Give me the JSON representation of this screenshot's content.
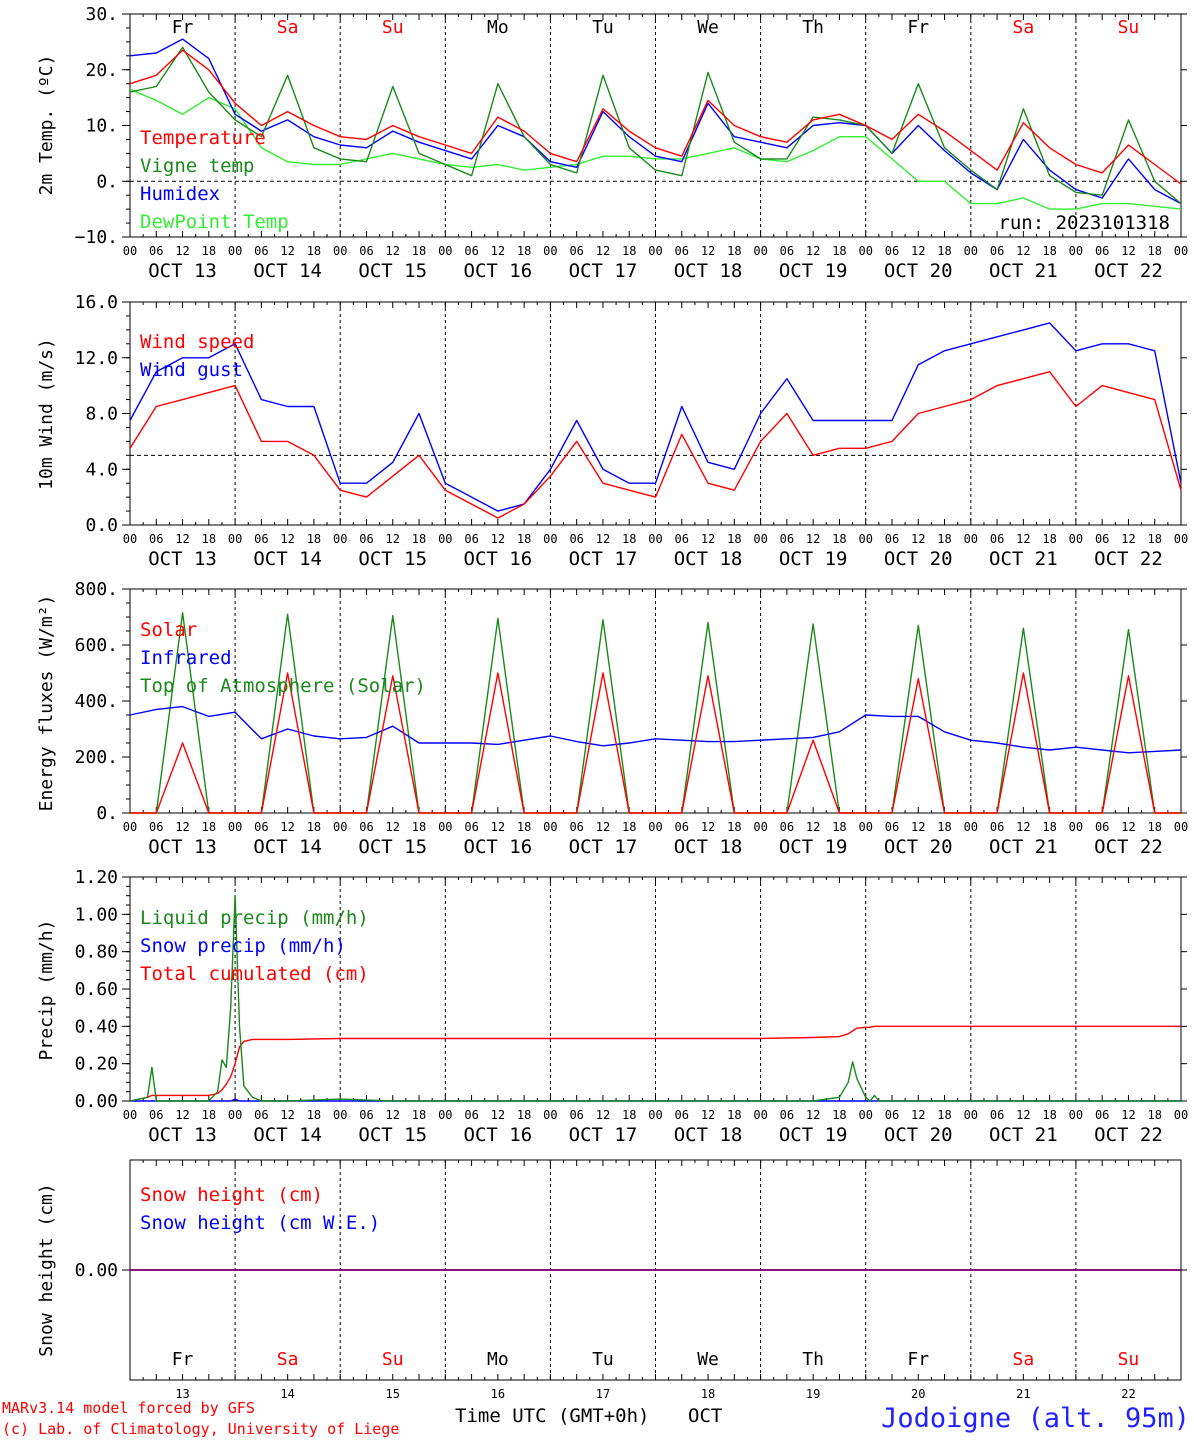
{
  "chart_data": [
    {
      "type": "line",
      "ylabel": "2m Temp. (ºC)",
      "ylim": [
        -10,
        30
      ],
      "yticks": [
        "30.",
        "20.",
        "10.",
        "0.",
        "−10."
      ],
      "yticks_values": [
        30,
        20,
        10,
        0,
        -10
      ],
      "reference_line": 0,
      "annotation": "run: 2023101318",
      "x": [
        0,
        6,
        12,
        18,
        24,
        30,
        36,
        42,
        48,
        54,
        60,
        66,
        72,
        78,
        84,
        90,
        96,
        102,
        108,
        114,
        120,
        126,
        132,
        138,
        144,
        150,
        156,
        162,
        168,
        174,
        180,
        186,
        192,
        198,
        204,
        210,
        216,
        222,
        228,
        234,
        240
      ],
      "series": [
        {
          "name": "Temperature",
          "color": "#ff0000",
          "values": [
            17.5,
            19,
            23.5,
            20,
            14,
            10,
            12.5,
            10,
            8,
            7.5,
            10,
            8,
            6.5,
            5,
            11.5,
            9,
            5,
            3.5,
            13,
            9,
            6,
            4.5,
            14.5,
            10,
            8,
            7,
            11,
            12,
            10,
            7.5,
            12,
            9,
            5.5,
            2,
            10.5,
            6,
            3,
            1.5,
            6.5,
            3,
            -0.5
          ]
        },
        {
          "name": "Vigne temp",
          "color": "#1a8a1a",
          "values": [
            16,
            17,
            24,
            16,
            11,
            8,
            19,
            6,
            4,
            3.5,
            17,
            5,
            3,
            1,
            17.5,
            8,
            3,
            1.5,
            19,
            6,
            2,
            1,
            19.5,
            7,
            4,
            4,
            11.5,
            11,
            10,
            5,
            17.5,
            6,
            2,
            -1.5,
            13,
            1,
            -2,
            -2.5,
            11,
            0,
            -4
          ]
        },
        {
          "name": "Humidex",
          "color": "#0000ff",
          "values": [
            22.5,
            23,
            25.5,
            22,
            12,
            9,
            11,
            8,
            6.5,
            6,
            9,
            7,
            5.5,
            4,
            10,
            8,
            3.5,
            2.5,
            12.5,
            8,
            4.5,
            3.5,
            14,
            8,
            7,
            6,
            10,
            10.5,
            10,
            5,
            10,
            5.5,
            1.5,
            -1.5,
            7.5,
            2,
            -1.5,
            -3,
            4,
            -1.5,
            -4
          ]
        },
        {
          "name": "DewPoint Temp",
          "color": "#33ee33",
          "values": [
            16.5,
            14.5,
            12,
            15,
            13,
            6,
            3.5,
            3,
            3,
            4,
            5,
            4,
            3,
            2.5,
            3,
            2,
            2.5,
            3,
            4.5,
            4.5,
            4,
            4,
            5,
            6,
            4,
            3.5,
            5.5,
            8,
            8,
            4,
            0,
            0,
            -4,
            -4,
            -3,
            -5,
            -5,
            -4,
            -4,
            -4.5,
            -5
          ]
        }
      ]
    },
    {
      "type": "line",
      "ylabel": "10m Wind (m/s)",
      "ylim": [
        0,
        16
      ],
      "yticks": [
        "16.0",
        "12.0",
        "8.0",
        "4.0",
        "0.0"
      ],
      "yticks_values": [
        16,
        12,
        8,
        4,
        0
      ],
      "reference_line": 5,
      "x": [
        0,
        6,
        12,
        18,
        24,
        30,
        36,
        42,
        48,
        54,
        60,
        66,
        72,
        78,
        84,
        90,
        96,
        102,
        108,
        114,
        120,
        126,
        132,
        138,
        144,
        150,
        156,
        162,
        168,
        174,
        180,
        186,
        192,
        198,
        204,
        210,
        216,
        222,
        228,
        234,
        240
      ],
      "series": [
        {
          "name": "Wind speed",
          "color": "#ff0000",
          "values": [
            5.5,
            8.5,
            9,
            9.5,
            10,
            6,
            6,
            5,
            2.5,
            2,
            3.5,
            5,
            2.5,
            1.5,
            0.5,
            1.5,
            3.5,
            6,
            3,
            2.5,
            2,
            6.5,
            3,
            2.5,
            6,
            8,
            5,
            5.5,
            5.5,
            6,
            8,
            8.5,
            9,
            10,
            10.5,
            11,
            8.5,
            10,
            9.5,
            9,
            2.5
          ]
        },
        {
          "name": "Wind gust",
          "color": "#0000ff",
          "values": [
            7.5,
            11,
            12,
            12,
            13,
            9,
            8.5,
            8.5,
            3,
            3,
            4.5,
            8,
            3,
            2,
            1,
            1.5,
            4,
            7.5,
            4,
            3,
            3,
            8.5,
            4.5,
            4,
            8,
            10.5,
            7.5,
            7.5,
            7.5,
            7.5,
            11.5,
            12.5,
            13,
            13.5,
            14,
            14.5,
            12.5,
            13,
            13,
            12.5,
            3
          ]
        }
      ]
    },
    {
      "type": "line",
      "ylabel": "Energy fluxes (W/m²)",
      "ylim": [
        0,
        800
      ],
      "yticks": [
        "800.",
        "600.",
        "400.",
        "200.",
        "0."
      ],
      "yticks_values": [
        800,
        600,
        400,
        200,
        0
      ],
      "x": [
        0,
        6,
        12,
        18,
        24,
        30,
        36,
        42,
        48,
        54,
        60,
        66,
        72,
        78,
        84,
        90,
        96,
        102,
        108,
        114,
        120,
        126,
        132,
        138,
        144,
        150,
        156,
        162,
        168,
        174,
        180,
        186,
        192,
        198,
        204,
        210,
        216,
        222,
        228,
        234,
        240
      ],
      "series": [
        {
          "name": "Solar",
          "color": "#ff0000",
          "values": [
            0,
            0,
            250,
            0,
            0,
            0,
            500,
            0,
            0,
            0,
            490,
            0,
            0,
            0,
            500,
            0,
            0,
            0,
            500,
            0,
            0,
            0,
            490,
            0,
            0,
            0,
            260,
            0,
            0,
            0,
            480,
            0,
            0,
            0,
            500,
            0,
            0,
            0,
            490,
            0,
            0
          ]
        },
        {
          "name": "Infrared",
          "color": "#0000ff",
          "values": [
            350,
            370,
            380,
            345,
            360,
            265,
            300,
            275,
            265,
            270,
            310,
            250,
            250,
            250,
            245,
            260,
            275,
            255,
            240,
            250,
            265,
            260,
            255,
            255,
            260,
            265,
            270,
            290,
            350,
            345,
            345,
            290,
            260,
            250,
            235,
            225,
            235,
            225,
            215,
            220,
            225
          ]
        },
        {
          "name": "Top of Atmosphere (Solar)",
          "color": "#1a8a1a",
          "values": [
            0,
            0,
            715,
            0,
            0,
            0,
            710,
            0,
            0,
            0,
            705,
            0,
            0,
            0,
            695,
            0,
            0,
            0,
            690,
            0,
            0,
            0,
            680,
            0,
            0,
            0,
            675,
            0,
            0,
            0,
            670,
            0,
            0,
            0,
            660,
            0,
            0,
            0,
            655,
            0,
            0
          ]
        }
      ]
    },
    {
      "type": "line",
      "ylabel": "Precip (mm/h)",
      "ylim": [
        0,
        1.2
      ],
      "yticks": [
        "1.20",
        "1.00",
        "0.80",
        "0.60",
        "0.40",
        "0.20",
        "0.00"
      ],
      "yticks_values": [
        1.2,
        1.0,
        0.8,
        0.6,
        0.4,
        0.2,
        0
      ],
      "x": [
        0,
        4,
        5,
        6,
        8,
        12,
        18,
        20,
        21,
        22,
        23,
        24,
        25,
        26,
        28,
        30,
        36,
        48,
        60,
        72,
        96,
        120,
        144,
        156,
        162,
        164,
        165,
        166,
        168,
        169,
        170,
        171,
        172,
        180,
        200,
        220,
        240
      ],
      "series": [
        {
          "name": "Liquid precip (mm/h)",
          "color": "#1a8a1a",
          "values": [
            0,
            0.02,
            0.18,
            0,
            0,
            0,
            0,
            0.05,
            0.22,
            0.18,
            0.5,
            1.1,
            0.4,
            0.08,
            0.02,
            0,
            0,
            0.01,
            0,
            0,
            0,
            0,
            0,
            0,
            0.02,
            0.1,
            0.21,
            0.12,
            0.02,
            0,
            0.03,
            0,
            0,
            0,
            0,
            0,
            0
          ]
        },
        {
          "name": "Snow precip (mm/h)",
          "color": "#0000ff",
          "values": [
            0,
            0,
            0,
            0,
            0,
            0,
            0,
            0,
            0,
            0,
            0,
            0.01,
            0,
            0,
            0,
            0,
            0,
            0,
            0,
            0,
            0,
            0,
            0,
            0,
            0,
            0,
            0,
            0,
            0,
            0,
            0,
            0,
            0,
            0,
            0,
            0,
            0
          ]
        },
        {
          "name": "Total cumulated (cm)",
          "color": "#ff0000",
          "values": [
            0,
            0.02,
            0.03,
            0.03,
            0.03,
            0.03,
            0.03,
            0.04,
            0.06,
            0.09,
            0.13,
            0.2,
            0.29,
            0.32,
            0.33,
            0.33,
            0.33,
            0.335,
            0.335,
            0.335,
            0.335,
            0.335,
            0.335,
            0.34,
            0.345,
            0.36,
            0.375,
            0.39,
            0.395,
            0.395,
            0.4,
            0.4,
            0.4,
            0.4,
            0.4,
            0.4,
            0.4
          ]
        }
      ]
    },
    {
      "type": "line",
      "ylabel": "Snow height (cm)",
      "ylim": [
        -1,
        1
      ],
      "yticks": [
        "0.00"
      ],
      "yticks_values": [
        0
      ],
      "x": [
        0,
        240
      ],
      "series": [
        {
          "name": "Snow height (cm)",
          "color": "#ff0000",
          "values": [
            0,
            0
          ]
        },
        {
          "name": "Snow height (cm W.E.)",
          "color": "#0000ff",
          "values": [
            0,
            0
          ]
        }
      ]
    }
  ],
  "x_axis": {
    "hour_ticks": [
      "00",
      "06",
      "12",
      "18"
    ],
    "final_hour_tick": "00",
    "dates": [
      "OCT 13",
      "OCT 14",
      "OCT 15",
      "OCT 16",
      "OCT 17",
      "OCT 18",
      "OCT 19",
      "OCT 20",
      "OCT 21",
      "OCT 22"
    ],
    "days": [
      "Fr",
      "Sa",
      "Su",
      "Mo",
      "Tu",
      "We",
      "Th",
      "Fr",
      "Sa",
      "Su"
    ],
    "day_numbers": [
      "13",
      "14",
      "15",
      "16",
      "17",
      "18",
      "19",
      "20",
      "21",
      "22"
    ],
    "weekend_color": "#ff0000",
    "weekday_color": "#000000",
    "xlabel": "Time UTC (GMT+0h)",
    "month": "OCT"
  },
  "credits": {
    "line1": "MARv3.14 model forced by GFS",
    "line2": "(c) Lab. of Climatology, University of Liege",
    "color": "#ff0000"
  },
  "location": {
    "text": "Jodoigne (alt. 95m)",
    "color": "#2222ff"
  }
}
